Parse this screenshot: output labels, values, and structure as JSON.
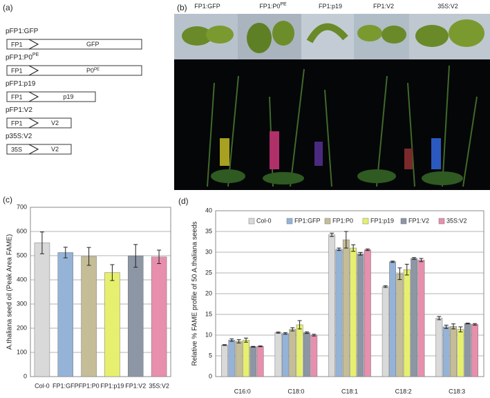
{
  "panel_labels": [
    "(a)",
    "(b)",
    "(c)",
    "(d)"
  ],
  "constructs": [
    {
      "name": "pFP1:GFP",
      "promoter": "FP1",
      "gene": "GFP"
    },
    {
      "name": "pFP1:P0",
      "name_sup": "PE",
      "promoter": "FP1",
      "gene": "P0",
      "gene_sup": "PE"
    },
    {
      "name": "pFP1:p19",
      "promoter": "FP1",
      "gene": "p19"
    },
    {
      "name": "pFP1:V2",
      "promoter": "FP1",
      "gene": "V2"
    },
    {
      "name": "p35S:V2",
      "promoter": "35S",
      "gene": "V2"
    }
  ],
  "photo_labels": [
    {
      "text": "FP1:GFP"
    },
    {
      "text": "FP1:P0",
      "sup": "PE"
    },
    {
      "text": "FP1:p19"
    },
    {
      "text": "FP1:V2"
    },
    {
      "text": "35S:V2"
    }
  ],
  "chart_data": [
    {
      "type": "bar",
      "ylabel": "A.thaliana seed oil (Peak Area FAME)",
      "categories": [
        "Col-0",
        "FP1:GFP",
        "FP1:P0",
        "FP1:p19",
        "FP1:V2",
        "35S:V2"
      ],
      "values": [
        553,
        513,
        497,
        430,
        499,
        495
      ],
      "errors": [
        45,
        22,
        37,
        33,
        47,
        28
      ],
      "colors": [
        "#d9d9d9",
        "#95b3d7",
        "#c4bd97",
        "#e6f06e",
        "#8c96a4",
        "#e88fae"
      ],
      "ylim": [
        0,
        700
      ],
      "yticks": [
        0,
        100,
        200,
        300,
        400,
        500,
        600,
        700
      ],
      "grid": true
    },
    {
      "type": "bar",
      "ylabel": "Relative % FAME profile of 50 A.thaliana seeds",
      "categories": [
        "C16:0",
        "C18:0",
        "C18:1",
        "C18:2",
        "C18:3"
      ],
      "series": [
        {
          "name": "Col-0",
          "color": "#d9d9d9",
          "values": [
            7.6,
            10.6,
            34.2,
            21.7,
            14.1
          ],
          "errors": [
            0.1,
            0.15,
            0.4,
            0.2,
            0.4
          ]
        },
        {
          "name": "FP1:GFP",
          "color": "#95b3d7",
          "values": [
            8.8,
            10.4,
            30.7,
            27.7,
            12.0
          ],
          "errors": [
            0.3,
            0.2,
            0.3,
            0.15,
            0.4
          ]
        },
        {
          "name": "FP1:P0",
          "color": "#c4bd97",
          "values": [
            8.5,
            11.4,
            33.0,
            24.8,
            12.1
          ],
          "errors": [
            0.4,
            0.4,
            2.0,
            1.4,
            0.6
          ]
        },
        {
          "name": "FP1:p19",
          "color": "#e6f06e",
          "values": [
            8.8,
            12.5,
            31.0,
            25.8,
            11.4
          ],
          "errors": [
            0.5,
            1.0,
            0.8,
            1.3,
            0.6
          ]
        },
        {
          "name": "FP1:V2",
          "color": "#8c96a4",
          "values": [
            7.2,
            10.6,
            29.6,
            28.5,
            12.8
          ],
          "errors": [
            0.1,
            0.2,
            0.3,
            0.2,
            0.1
          ]
        },
        {
          "name": "35S:V2",
          "color": "#e88fae",
          "values": [
            7.3,
            10.0,
            30.6,
            28.1,
            12.6
          ],
          "errors": [
            0.1,
            0.2,
            0.2,
            0.4,
            0.2
          ]
        }
      ],
      "ylim": [
        0,
        40
      ],
      "yticks": [
        0,
        5,
        10,
        15,
        20,
        25,
        30,
        35,
        40
      ],
      "grid": true,
      "legend": "top"
    }
  ]
}
